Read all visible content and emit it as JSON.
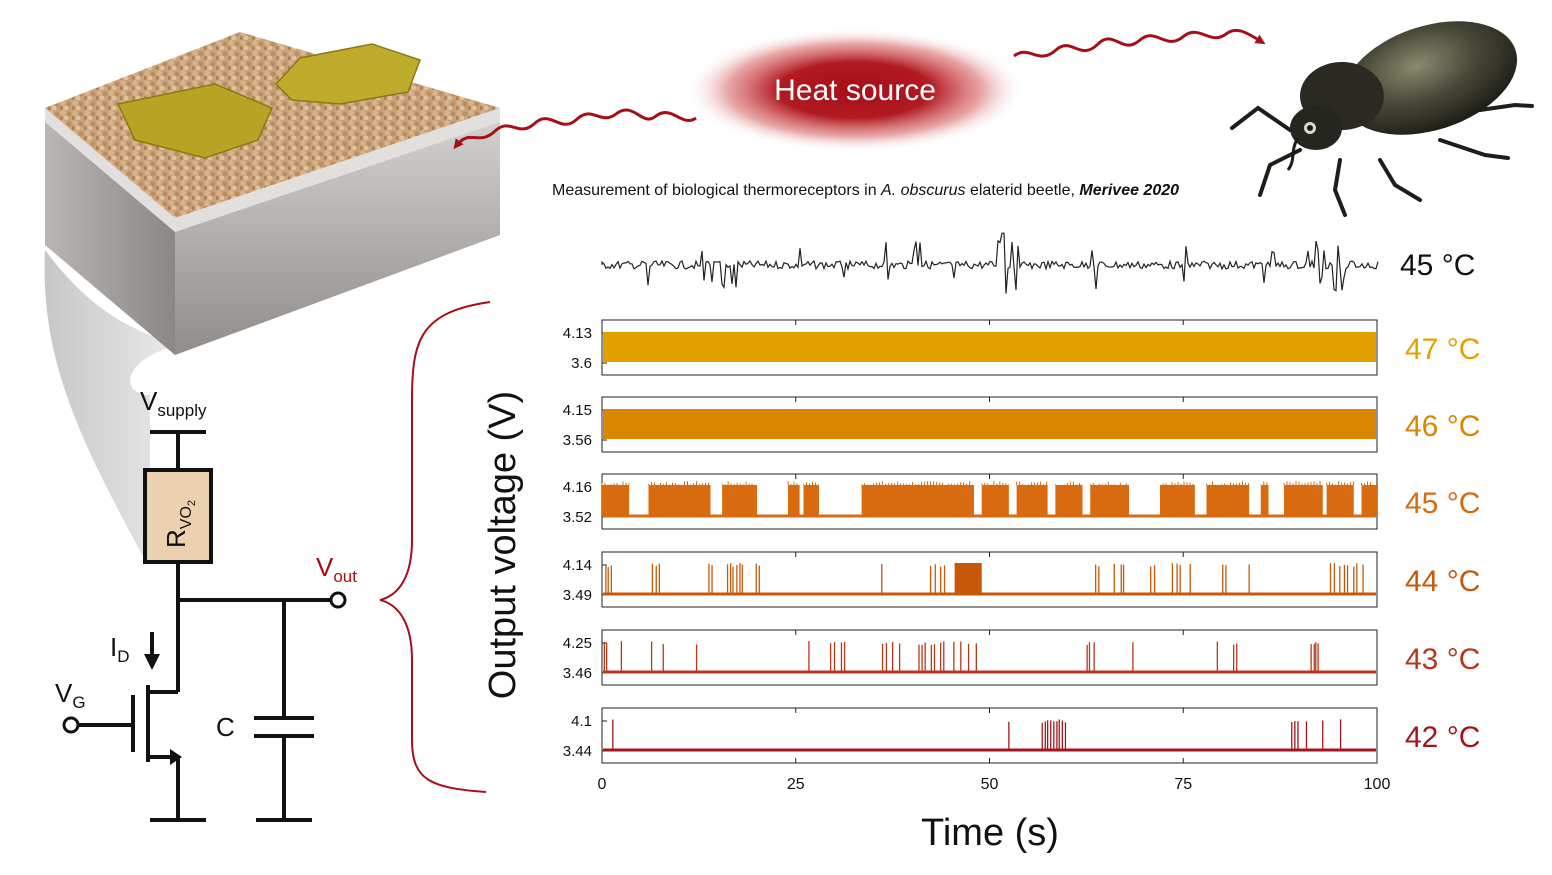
{
  "heat_source": {
    "label": "Heat source",
    "color": "#b01420"
  },
  "measurement_caption": {
    "prefix": "Measurement of biological thermoreceptors in ",
    "species": "A. obscurus",
    "middle": " elaterid beetle, ",
    "citation": "Merivee 2020"
  },
  "bio_trace": {
    "temperature": "45 °C",
    "color": "#222222"
  },
  "circuit": {
    "vsupply_main": "V",
    "vsupply_sub": "supply",
    "resistor_main": "R",
    "resistor_sub": "VO",
    "resistor_subsub": "2",
    "vout_main": "V",
    "vout_sub": "out",
    "id_main": "I",
    "id_sub": "D",
    "vg_main": "V",
    "vg_sub": "G",
    "capacitor": "C"
  },
  "chart_data": {
    "type": "line",
    "xlabel": "Time (s)",
    "ylabel": "Output voltage (V)",
    "xlim": [
      0,
      100
    ],
    "xticks": [
      "0",
      "25",
      "50",
      "75",
      "100"
    ],
    "series": [
      {
        "temperature": "47 °C",
        "ymax": "4.13",
        "ymin": "3.6",
        "color": "#e3a100",
        "pattern": "continuous oscillation"
      },
      {
        "temperature": "46 °C",
        "ymax": "4.15",
        "ymin": "3.56",
        "color": "#d98600",
        "pattern": "continuous oscillation"
      },
      {
        "temperature": "45 °C",
        "ymax": "4.16",
        "ymin": "3.52",
        "color": "#d86a10",
        "pattern": "bursting",
        "bursts_s": [
          [
            0,
            3.5
          ],
          [
            6,
            14
          ],
          [
            15.5,
            20
          ],
          [
            24,
            25.5
          ],
          [
            26,
            28
          ],
          [
            33.5,
            48
          ],
          [
            49,
            52.5
          ],
          [
            53.5,
            57.5
          ],
          [
            58.5,
            62
          ],
          [
            63,
            68
          ],
          [
            72,
            76.5
          ],
          [
            78,
            83.5
          ],
          [
            85,
            86
          ],
          [
            88,
            93
          ],
          [
            93.5,
            97
          ],
          [
            98,
            100
          ]
        ]
      },
      {
        "temperature": "44 °C",
        "ymax": "4.14",
        "ymin": "3.49",
        "color": "#c7580a",
        "pattern": "sparse spikes",
        "burst_s": [
          45.5,
          49
        ],
        "spikes_s": [
          0.5,
          0.8,
          1.2,
          6.5,
          7.0,
          7.4,
          13.8,
          14.2,
          16.2,
          16.6,
          16.9,
          17.4,
          17.8,
          18.1,
          19.9,
          20.3,
          36.1,
          42.4,
          43.0,
          43.7,
          44.2,
          63.7,
          64.1,
          66.1,
          67.0,
          67.3,
          70.8,
          71.3,
          73.6,
          74.2,
          74.6,
          75.9,
          80.1,
          80.5,
          83.5,
          94.0,
          94.5,
          95.2,
          95.8,
          96.2,
          97.0,
          97.4,
          98.2
        ]
      },
      {
        "temperature": "43 °C",
        "ymax": "4.25",
        "ymin": "3.46",
        "color": "#b5381a",
        "pattern": "sparse spikes",
        "spikes_s": [
          0.3,
          0.6,
          2.5,
          6.4,
          7.9,
          12.2,
          26.7,
          29.5,
          30.0,
          30.9,
          31.3,
          36.2,
          36.7,
          37.5,
          38.4,
          40.9,
          41.3,
          41.7,
          42.5,
          42.9,
          43.7,
          44.1,
          45.4,
          46.3,
          47.3,
          48.3,
          62.6,
          62.9,
          63.5,
          68.5,
          79.4,
          81.5,
          81.9,
          91.5,
          91.9,
          92.1,
          92.4
        ]
      },
      {
        "temperature": "42 °C",
        "ymax": "4.1",
        "ymin": "3.44",
        "color": "#a4141c",
        "pattern": "sparse spikes",
        "spikes_s": [
          1.4,
          52.5,
          56.8,
          57.2,
          57.5,
          57.9,
          58.3,
          58.7,
          59.0,
          59.4,
          59.8,
          89.0,
          89.4,
          89.8,
          90.9,
          93.0,
          95.3
        ]
      }
    ]
  }
}
